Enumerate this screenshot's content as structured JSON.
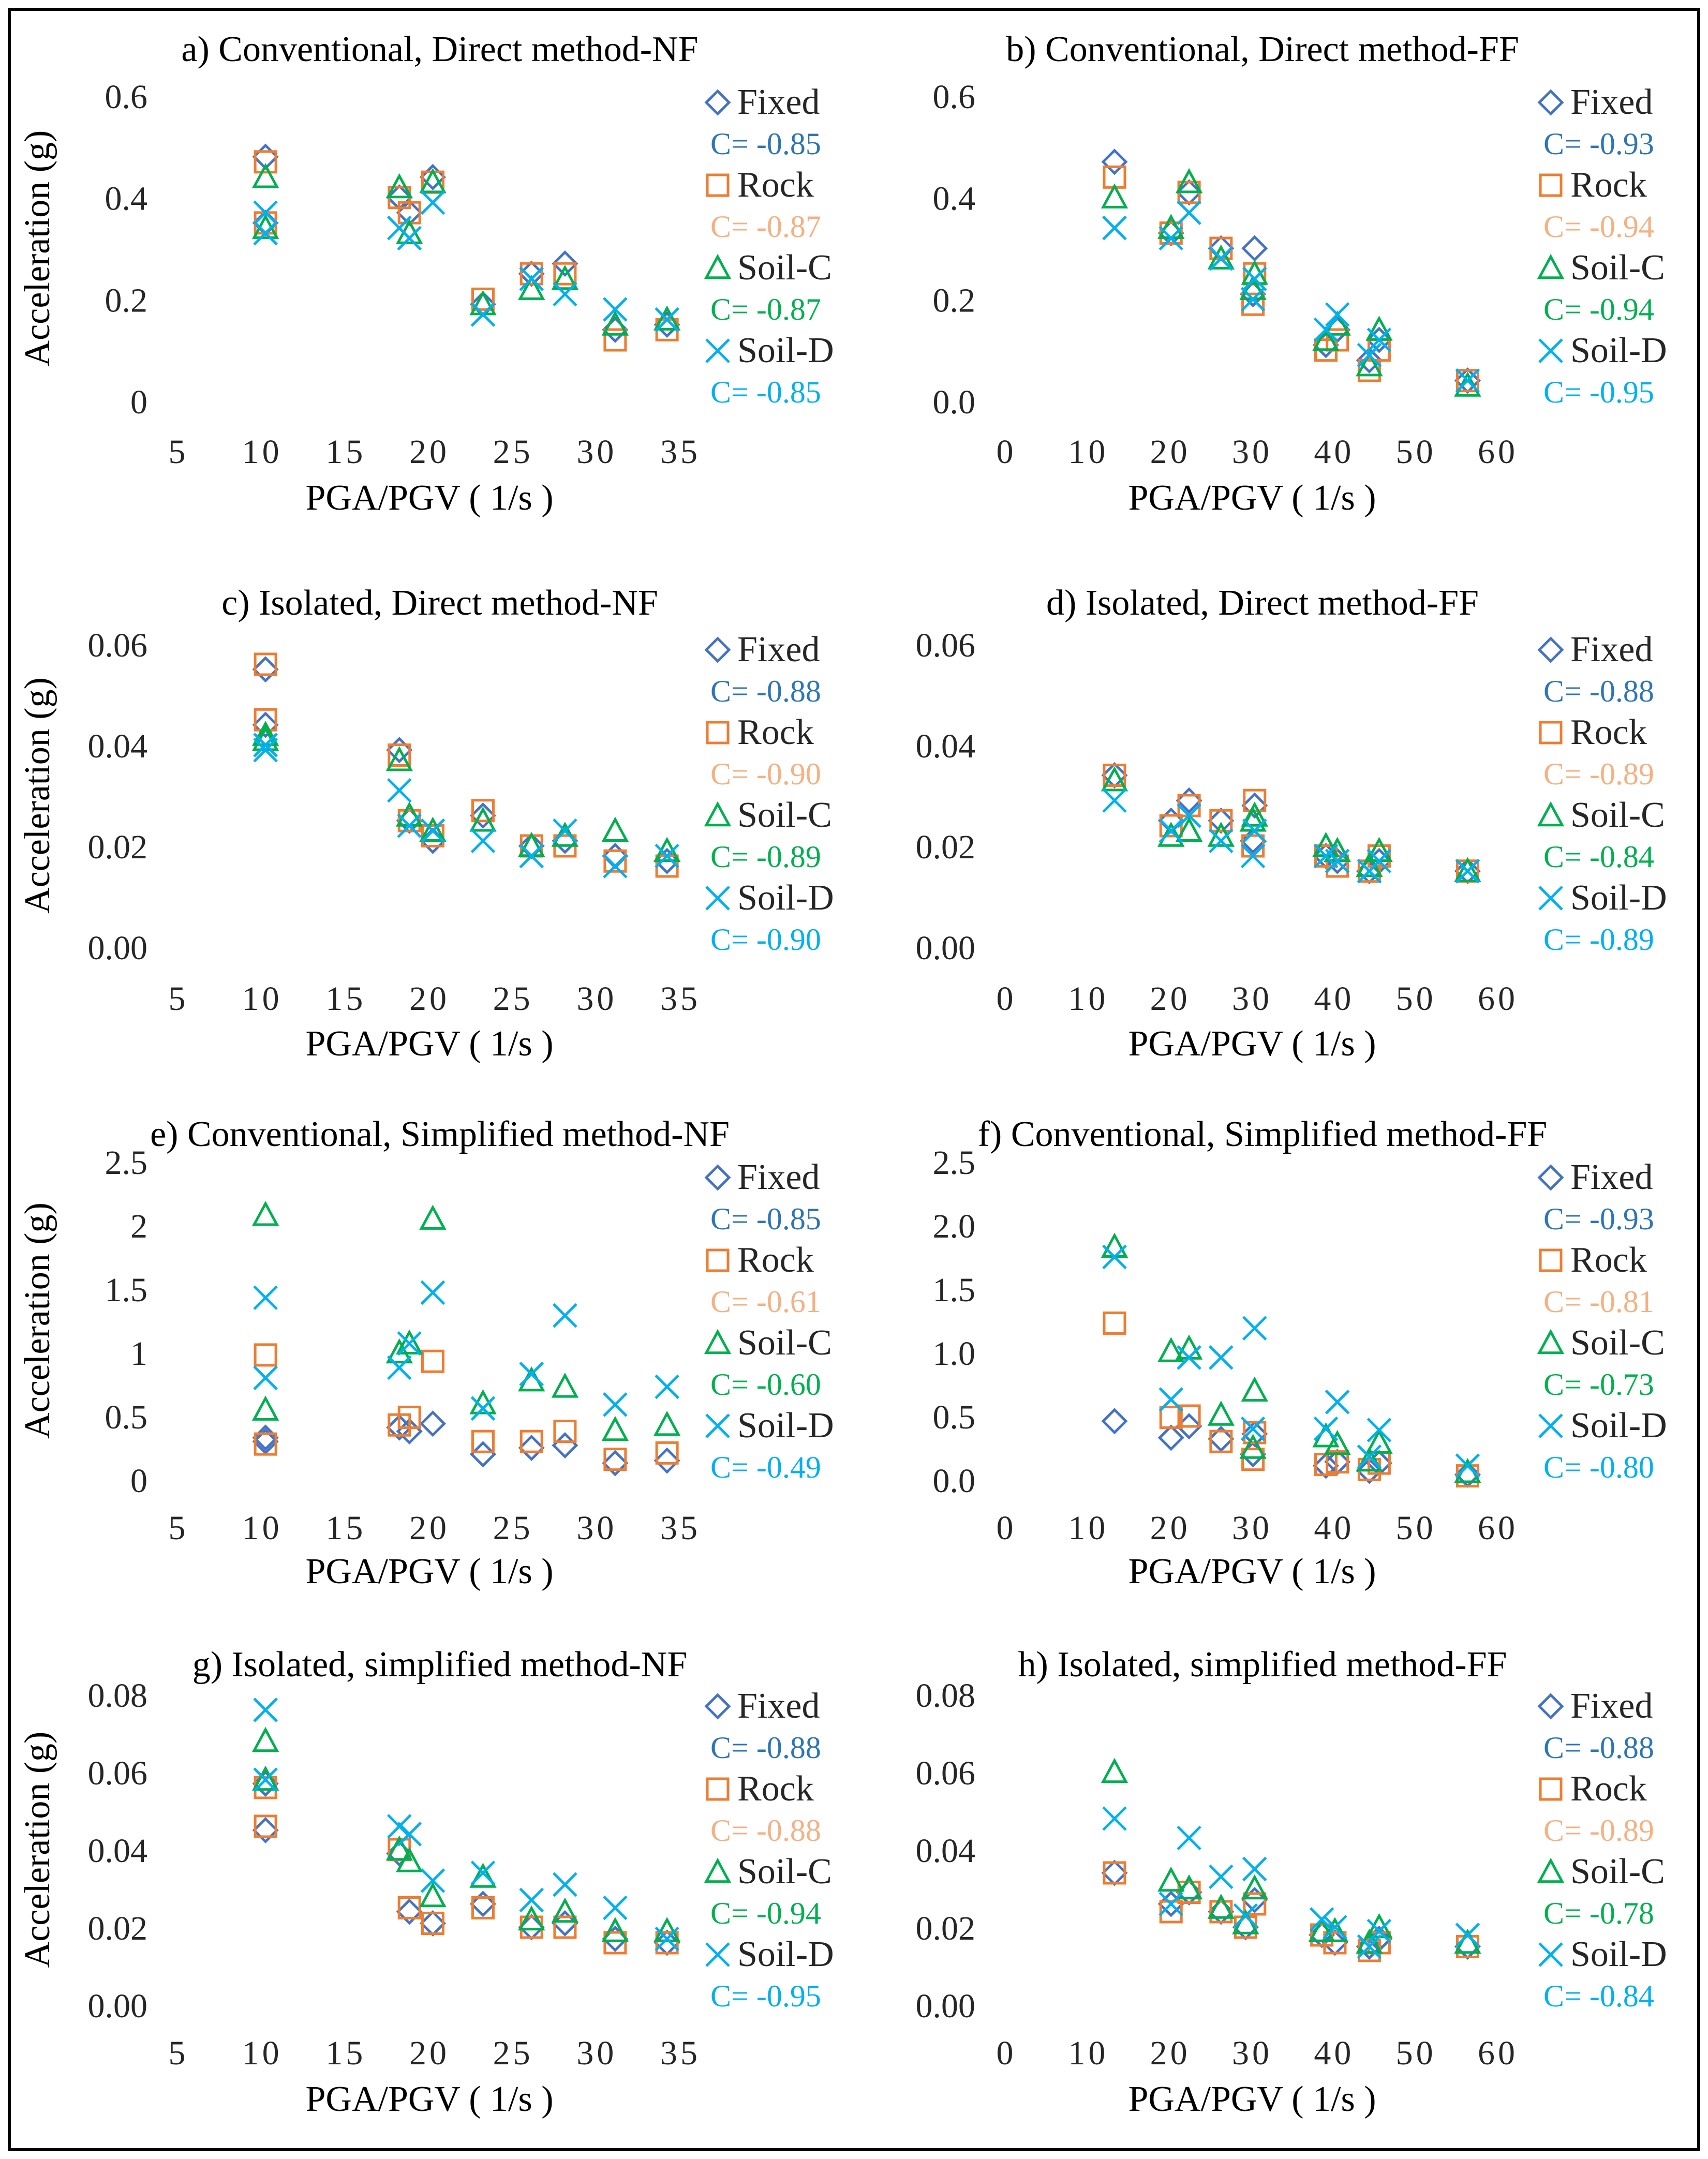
{
  "figure": {
    "colors": {
      "frame": "#000000",
      "gridline": "#d9d9d9",
      "text": "#262626"
    }
  },
  "series_styles": {
    "Fixed": {
      "marker": "diamond",
      "color": "#4472C4",
      "corr_color": "#2E75B6"
    },
    "Rock": {
      "marker": "square",
      "color": "#ED7D31",
      "corr_color": "#F4B183"
    },
    "Soil-C": {
      "marker": "triangle",
      "color": "#00B050",
      "corr_color": "#00B050"
    },
    "Soil-D": {
      "marker": "cross",
      "color": "#00B0F0",
      "corr_color": "#00B0F0"
    }
  },
  "chart_data": [
    {
      "type": "scatter",
      "title": "a) Conventional, Direct method-NF",
      "xlabel": "PGA/PGV ( 1/s )",
      "ylabel": "Acceleration (g)",
      "xlim": [
        5,
        35
      ],
      "ylim": [
        0,
        0.6
      ],
      "xticks": [
        "5",
        "10",
        "15",
        "20",
        "25",
        "30",
        "35"
      ],
      "yticks": [
        "0",
        "0.2",
        "0.4",
        "0.6"
      ],
      "x": [
        10.2,
        10.2,
        18.2,
        18.8,
        20.2,
        23.2,
        26.1,
        28.1,
        31.1,
        34.2
      ],
      "series": [
        {
          "name": "Fixed",
          "corr": "C= -0.85",
          "values": [
            0.48,
            0.35,
            0.4,
            0.37,
            0.44,
            0.19,
            0.25,
            0.27,
            0.14,
            0.15
          ]
        },
        {
          "name": "Rock",
          "corr": "C= -0.87",
          "values": [
            0.47,
            0.35,
            0.4,
            0.37,
            0.43,
            0.2,
            0.25,
            0.25,
            0.12,
            0.14
          ]
        },
        {
          "name": "Soil-C",
          "corr": "C= -0.87",
          "values": [
            0.44,
            0.34,
            0.42,
            0.33,
            0.43,
            0.19,
            0.22,
            0.24,
            0.15,
            0.16
          ]
        },
        {
          "name": "Soil-D",
          "corr": "C= -0.85",
          "values": [
            0.37,
            0.33,
            0.34,
            0.32,
            0.39,
            0.17,
            0.24,
            0.21,
            0.18,
            0.16
          ]
        }
      ]
    },
    {
      "type": "scatter",
      "title": "b) Conventional, Direct method-FF",
      "xlabel": "PGA/PGV ( 1/s )",
      "ylabel": "",
      "xlim": [
        0,
        60
      ],
      "ylim": [
        0,
        0.6
      ],
      "xticks": [
        "0",
        "10",
        "20",
        "30",
        "40",
        "50",
        "60"
      ],
      "yticks": [
        "0.0",
        "0.2",
        "0.4",
        "0.6"
      ],
      "x": [
        13.2,
        20.1,
        22.3,
        26.2,
        30.1,
        30.3,
        39.0,
        40.4,
        44.3,
        45.5,
        56.3
      ],
      "series": [
        {
          "name": "Fixed",
          "corr": "C= -0.93",
          "values": [
            0.47,
            0.33,
            0.41,
            0.3,
            0.21,
            0.3,
            0.11,
            0.14,
            0.08,
            0.12,
            0.04
          ]
        },
        {
          "name": "Rock",
          "corr": "C= -0.94",
          "values": [
            0.44,
            0.33,
            0.41,
            0.3,
            0.19,
            0.25,
            0.1,
            0.12,
            0.06,
            0.1,
            0.04
          ]
        },
        {
          "name": "Soil-C",
          "corr": "C= -0.94",
          "values": [
            0.4,
            0.34,
            0.43,
            0.28,
            0.22,
            0.25,
            0.12,
            0.15,
            0.07,
            0.14,
            0.03
          ]
        },
        {
          "name": "Soil-D",
          "corr": "C= -0.95",
          "values": [
            0.34,
            0.32,
            0.37,
            0.28,
            0.2,
            0.24,
            0.14,
            0.17,
            0.09,
            0.12,
            0.04
          ]
        }
      ]
    },
    {
      "type": "scatter",
      "title": "c) Isolated, Direct method-NF",
      "xlabel": "PGA/PGV ( 1/s )",
      "ylabel": "Acceleration (g)",
      "xlim": [
        5,
        35
      ],
      "ylim": [
        0,
        0.06
      ],
      "xticks": [
        "5",
        "10",
        "15",
        "20",
        "25",
        "30",
        "35"
      ],
      "yticks": [
        "0.00",
        "0.02",
        "0.04",
        "0.06"
      ],
      "x": [
        10.2,
        10.2,
        18.2,
        18.8,
        20.2,
        23.2,
        26.1,
        28.1,
        31.1,
        34.2
      ],
      "series": [
        {
          "name": "Fixed",
          "corr": "C= -0.88",
          "values": [
            0.055,
            0.044,
            0.039,
            0.025,
            0.021,
            0.026,
            0.02,
            0.021,
            0.018,
            0.017
          ]
        },
        {
          "name": "Rock",
          "corr": "C= -0.90",
          "values": [
            0.056,
            0.045,
            0.038,
            0.025,
            0.022,
            0.027,
            0.02,
            0.02,
            0.017,
            0.016
          ]
        },
        {
          "name": "Soil-C",
          "corr": "C= -0.89",
          "values": [
            0.042,
            0.041,
            0.037,
            0.026,
            0.023,
            0.025,
            0.02,
            0.022,
            0.023,
            0.019
          ]
        },
        {
          "name": "Soil-D",
          "corr": "C= -0.90",
          "values": [
            0.039,
            0.04,
            0.031,
            0.024,
            0.023,
            0.021,
            0.018,
            0.023,
            0.016,
            0.018
          ]
        }
      ]
    },
    {
      "type": "scatter",
      "title": "d) Isolated, Direct method-FF",
      "xlabel": "PGA/PGV ( 1/s )",
      "ylabel": "",
      "xlim": [
        0,
        60
      ],
      "ylim": [
        0,
        0.06
      ],
      "xticks": [
        "0",
        "10",
        "20",
        "30",
        "40",
        "50",
        "60"
      ],
      "yticks": [
        "0.00",
        "0.02",
        "0.04",
        "0.06"
      ],
      "x": [
        13.2,
        20.1,
        22.3,
        26.2,
        30.1,
        30.3,
        39.0,
        40.4,
        44.3,
        45.5,
        56.3
      ],
      "series": [
        {
          "name": "Fixed",
          "corr": "C= -0.88",
          "values": [
            0.034,
            0.025,
            0.029,
            0.025,
            0.021,
            0.028,
            0.018,
            0.017,
            0.015,
            0.017,
            0.015
          ]
        },
        {
          "name": "Rock",
          "corr": "C= -0.89",
          "values": [
            0.034,
            0.024,
            0.028,
            0.025,
            0.02,
            0.029,
            0.018,
            0.016,
            0.015,
            0.018,
            0.015
          ]
        },
        {
          "name": "Soil-C",
          "corr": "C= -0.84",
          "values": [
            0.033,
            0.022,
            0.023,
            0.022,
            0.025,
            0.026,
            0.02,
            0.019,
            0.016,
            0.019,
            0.015
          ]
        },
        {
          "name": "Soil-D",
          "corr": "C= -0.89",
          "values": [
            0.029,
            0.023,
            0.026,
            0.021,
            0.018,
            0.023,
            0.018,
            0.017,
            0.015,
            0.017,
            0.015
          ]
        }
      ]
    },
    {
      "type": "scatter",
      "title": "e) Conventional, Simplified method-NF",
      "xlabel": "PGA/PGV ( 1/s )",
      "ylabel": "Acceleration (g)",
      "xlim": [
        5,
        35
      ],
      "ylim": [
        0,
        2.5
      ],
      "xticks": [
        "5",
        "10",
        "15",
        "20",
        "25",
        "30",
        "35"
      ],
      "yticks": [
        "0",
        "0.5",
        "1",
        "1.5",
        "2",
        "2.5"
      ],
      "x": [
        10.2,
        10.2,
        18.2,
        18.8,
        20.2,
        23.2,
        26.1,
        28.1,
        31.1,
        34.2
      ],
      "series": [
        {
          "name": "Fixed",
          "corr": "C= -0.85",
          "values": [
            0.33,
            0.3,
            0.41,
            0.38,
            0.44,
            0.2,
            0.25,
            0.27,
            0.13,
            0.15
          ]
        },
        {
          "name": "Rock",
          "corr": "C= -0.61",
          "values": [
            0.98,
            0.28,
            0.43,
            0.49,
            0.93,
            0.3,
            0.3,
            0.38,
            0.16,
            0.21
          ]
        },
        {
          "name": "Soil-C",
          "corr": "C= -0.60",
          "values": [
            2.08,
            0.55,
            1.0,
            1.07,
            2.05,
            0.6,
            0.78,
            0.73,
            0.39,
            0.43
          ]
        },
        {
          "name": "Soil-D",
          "corr": "C= -0.49",
          "values": [
            1.43,
            0.8,
            0.88,
            1.07,
            1.47,
            0.56,
            0.83,
            1.29,
            0.59,
            0.73
          ]
        }
      ]
    },
    {
      "type": "scatter",
      "title": "f) Conventional, Simplified method-FF",
      "xlabel": "PGA/PGV ( 1/s )",
      "ylabel": "",
      "xlim": [
        0,
        60
      ],
      "ylim": [
        0,
        2.5
      ],
      "xticks": [
        "0",
        "10",
        "20",
        "30",
        "40",
        "50",
        "60"
      ],
      "yticks": [
        "0.0",
        "0.5",
        "1.0",
        "1.5",
        "2.0",
        "2.5"
      ],
      "x": [
        13.2,
        20.1,
        22.3,
        26.2,
        30.1,
        30.3,
        39.0,
        40.4,
        44.3,
        45.5,
        56.3
      ],
      "series": [
        {
          "name": "Fixed",
          "corr": "C= -0.93",
          "values": [
            0.46,
            0.33,
            0.42,
            0.32,
            0.2,
            0.36,
            0.11,
            0.14,
            0.07,
            0.13,
            0.04
          ]
        },
        {
          "name": "Rock",
          "corr": "C= -0.81",
          "values": [
            1.23,
            0.49,
            0.5,
            0.3,
            0.16,
            0.37,
            0.12,
            0.14,
            0.08,
            0.13,
            0.03
          ]
        },
        {
          "name": "Soil-C",
          "corr": "C= -0.73",
          "values": [
            1.83,
            1.01,
            1.03,
            0.51,
            0.25,
            0.7,
            0.34,
            0.28,
            0.15,
            0.29,
            0.06
          ]
        },
        {
          "name": "Soil-D",
          "corr": "C= -0.80",
          "values": [
            1.75,
            0.63,
            0.96,
            0.96,
            0.4,
            1.19,
            0.4,
            0.61,
            0.18,
            0.39,
            0.11
          ]
        }
      ]
    },
    {
      "type": "scatter",
      "title": "g) Isolated, simplified method-NF",
      "xlabel": "PGA/PGV ( 1/s )",
      "ylabel": "Acceleration (g)",
      "xlim": [
        5,
        35
      ],
      "ylim": [
        0,
        0.08
      ],
      "xticks": [
        "5",
        "10",
        "15",
        "20",
        "25",
        "30",
        "35"
      ],
      "yticks": [
        "0.00",
        "0.02",
        "0.04",
        "0.06",
        "0.08"
      ],
      "x": [
        10.2,
        10.2,
        18.2,
        18.8,
        20.2,
        23.2,
        26.1,
        28.1,
        31.1,
        34.2
      ],
      "series": [
        {
          "name": "Fixed",
          "corr": "C= -0.88",
          "values": [
            0.057,
            0.045,
            0.039,
            0.024,
            0.021,
            0.026,
            0.02,
            0.021,
            0.017,
            0.016
          ]
        },
        {
          "name": "Rock",
          "corr": "C= -0.88",
          "values": [
            0.056,
            0.046,
            0.04,
            0.025,
            0.021,
            0.025,
            0.02,
            0.02,
            0.016,
            0.016
          ]
        },
        {
          "name": "Soil-C",
          "corr": "C= -0.94",
          "values": [
            0.068,
            0.058,
            0.04,
            0.037,
            0.028,
            0.033,
            0.022,
            0.024,
            0.019,
            0.019
          ]
        },
        {
          "name": "Soil-D",
          "corr": "C= -0.95",
          "values": [
            0.076,
            0.058,
            0.046,
            0.044,
            0.032,
            0.034,
            0.027,
            0.031,
            0.025,
            0.017
          ]
        }
      ]
    },
    {
      "type": "scatter",
      "title": "h) Isolated, simplified method-FF",
      "xlabel": "PGA/PGV ( 1/s )",
      "ylabel": "",
      "xlim": [
        0,
        60
      ],
      "ylim": [
        0,
        0.08
      ],
      "xticks": [
        "0",
        "10",
        "20",
        "30",
        "40",
        "50",
        "60"
      ],
      "yticks": [
        "0.00",
        "0.02",
        "0.04",
        "0.06",
        "0.08"
      ],
      "x": [
        13.2,
        20.1,
        22.3,
        26.2,
        29.2,
        30.3,
        38.5,
        40.1,
        44.3,
        45.5,
        56.3
      ],
      "series": [
        {
          "name": "Fixed",
          "corr": "C= -0.88",
          "values": [
            0.034,
            0.026,
            0.029,
            0.024,
            0.02,
            0.027,
            0.018,
            0.016,
            0.015,
            0.017,
            0.015
          ]
        },
        {
          "name": "Rock",
          "corr": "C= -0.89",
          "values": [
            0.034,
            0.024,
            0.029,
            0.024,
            0.02,
            0.026,
            0.018,
            0.016,
            0.014,
            0.016,
            0.015
          ]
        },
        {
          "name": "Soil-C",
          "corr": "C= -0.78",
          "values": [
            0.06,
            0.032,
            0.03,
            0.025,
            0.021,
            0.03,
            0.019,
            0.019,
            0.016,
            0.02,
            0.016
          ]
        },
        {
          "name": "Soil-D",
          "corr": "C= -0.84",
          "values": [
            0.048,
            0.026,
            0.043,
            0.033,
            0.023,
            0.035,
            0.022,
            0.02,
            0.015,
            0.019,
            0.018
          ]
        }
      ]
    }
  ]
}
